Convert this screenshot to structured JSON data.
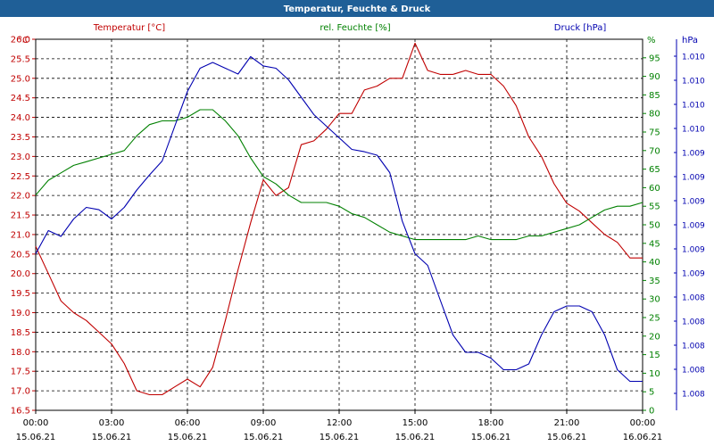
{
  "title": "Temperatur, Feuchte & Druck",
  "colors": {
    "title_bar": "#1F5F97",
    "title_text": "#ffffff",
    "temperature": "#C00000",
    "humidity": "#008000",
    "pressure": "#0000B0",
    "grid": "#000000",
    "background": "#ffffff"
  },
  "chart_data": {
    "type": "line",
    "title": "Temperatur, Feuchte & Druck",
    "grid": true,
    "x_axis": {
      "range_hours": [
        0,
        24
      ],
      "ticks": [
        {
          "time": "00:00",
          "date": "15.06.21"
        },
        {
          "time": "03:00",
          "date": "15.06.21"
        },
        {
          "time": "06:00",
          "date": "15.06.21"
        },
        {
          "time": "09:00",
          "date": "15.06.21"
        },
        {
          "time": "12:00",
          "date": "15.06.21"
        },
        {
          "time": "15:00",
          "date": "15.06.21"
        },
        {
          "time": "18:00",
          "date": "15.06.21"
        },
        {
          "time": "21:00",
          "date": "15.06.21"
        },
        {
          "time": "00:00",
          "date": "16.06.21"
        }
      ]
    },
    "axes": {
      "left": {
        "unit": "°C",
        "range": [
          16.5,
          26.0
        ],
        "ticks": [
          "16.5",
          "17.0",
          "17.5",
          "18.0",
          "18.5",
          "19.0",
          "19.5",
          "20.0",
          "20.5",
          "21.0",
          "21.5",
          "22.0",
          "22.5",
          "23.0",
          "23.5",
          "24.0",
          "24.5",
          "25.0",
          "25.5",
          "26.0"
        ]
      },
      "right": {
        "unit": "%",
        "range": [
          0,
          100
        ],
        "ticks": [
          "0",
          "5",
          "10",
          "15",
          "20",
          "25",
          "30",
          "35",
          "40",
          "45",
          "50",
          "55",
          "60",
          "65",
          "70",
          "75",
          "80",
          "85",
          "90",
          "95"
        ]
      },
      "pressure": {
        "unit": "hPa",
        "ticks": [
          "1.008",
          "1.008",
          "1.008",
          "1.008",
          "1.008",
          "1.009",
          "1.009",
          "1.009",
          "1.009",
          "1.009",
          "1.009",
          "1.010",
          "1.010",
          "1.010",
          "1.010"
        ]
      }
    },
    "series": [
      {
        "name": "Temperatur [°C]",
        "axis": "left",
        "x_hours": [
          0,
          0.5,
          1,
          1.5,
          2,
          2.5,
          3,
          3.5,
          4,
          4.5,
          5,
          5.5,
          6,
          6.5,
          7,
          7.5,
          8,
          8.5,
          9,
          9.5,
          10,
          10.5,
          11,
          11.5,
          12,
          12.5,
          13,
          13.5,
          14,
          14.5,
          15,
          15.5,
          16,
          16.5,
          17,
          17.5,
          18,
          18.5,
          19,
          19.5,
          20,
          20.5,
          21,
          21.5,
          22,
          22.5,
          23,
          23.5,
          24
        ],
        "values": [
          20.7,
          20.0,
          19.3,
          19.0,
          18.8,
          18.5,
          18.2,
          17.7,
          17.0,
          16.9,
          16.9,
          17.1,
          17.3,
          17.1,
          17.6,
          18.8,
          20.1,
          21.3,
          22.4,
          22.0,
          22.2,
          23.3,
          23.4,
          23.7,
          24.1,
          24.1,
          24.7,
          24.8,
          25.0,
          25.0,
          25.9,
          25.2,
          25.1,
          25.1,
          25.2,
          25.1,
          25.1,
          24.8,
          24.3,
          23.5,
          23.0,
          22.3,
          21.8,
          21.6,
          21.3,
          21.0,
          20.8,
          20.4,
          20.4
        ]
      },
      {
        "name": "rel. Feuchte [%]",
        "axis": "right",
        "x_hours": [
          0,
          0.5,
          1,
          1.5,
          2,
          2.5,
          3,
          3.5,
          4,
          4.5,
          5,
          5.5,
          6,
          6.5,
          7,
          7.5,
          8,
          8.5,
          9,
          9.5,
          10,
          10.5,
          11,
          11.5,
          12,
          12.5,
          13,
          13.5,
          14,
          14.5,
          15,
          15.5,
          16,
          16.5,
          17,
          17.5,
          18,
          18.5,
          19,
          19.5,
          20,
          20.5,
          21,
          21.5,
          22,
          22.5,
          23,
          23.5,
          24
        ],
        "values": [
          58,
          62,
          64,
          66,
          67,
          68,
          69,
          70,
          74,
          77,
          78,
          78,
          79,
          81,
          81,
          78,
          74,
          68,
          63,
          61,
          58,
          56,
          56,
          56,
          55,
          53,
          52,
          50,
          48,
          47,
          46,
          46,
          46,
          46,
          46,
          47,
          46,
          46,
          46,
          47,
          47,
          48,
          49,
          50,
          52,
          54,
          55,
          55,
          56
        ]
      },
      {
        "name": "Druck [hPa]",
        "axis": "pressure",
        "x_hours": [
          0,
          0.5,
          1,
          1.5,
          2,
          2.5,
          3,
          3.5,
          4,
          4.5,
          5,
          5.5,
          6,
          6.5,
          7,
          7.5,
          8,
          8.5,
          9,
          9.5,
          10,
          10.5,
          11,
          11.5,
          12,
          12.5,
          13,
          13.5,
          14,
          14.5,
          15,
          15.5,
          16,
          16.5,
          17,
          17.5,
          18,
          18.5,
          19,
          19.5,
          20,
          20.5,
          21,
          21.5,
          22,
          22.5,
          23,
          23.5,
          24
        ],
        "values": [
          1.0088,
          1.009,
          1.00895,
          1.0091,
          1.0092,
          1.00918,
          1.0091,
          1.0092,
          1.00935,
          1.00948,
          1.0096,
          1.0099,
          1.0102,
          1.0104,
          1.01045,
          1.0104,
          1.01035,
          1.0105,
          1.01042,
          1.0104,
          1.0103,
          1.01015,
          1.01,
          1.0099,
          1.0098,
          1.0097,
          1.00968,
          1.00965,
          1.0095,
          1.00908,
          1.0088,
          1.0087,
          1.0084,
          1.0081,
          1.00795,
          1.00795,
          1.0079,
          1.0078,
          1.0078,
          1.00785,
          1.0081,
          1.0083,
          1.00835,
          1.00835,
          1.0083,
          1.0081,
          1.0078,
          1.0077,
          1.0077
        ]
      }
    ]
  }
}
